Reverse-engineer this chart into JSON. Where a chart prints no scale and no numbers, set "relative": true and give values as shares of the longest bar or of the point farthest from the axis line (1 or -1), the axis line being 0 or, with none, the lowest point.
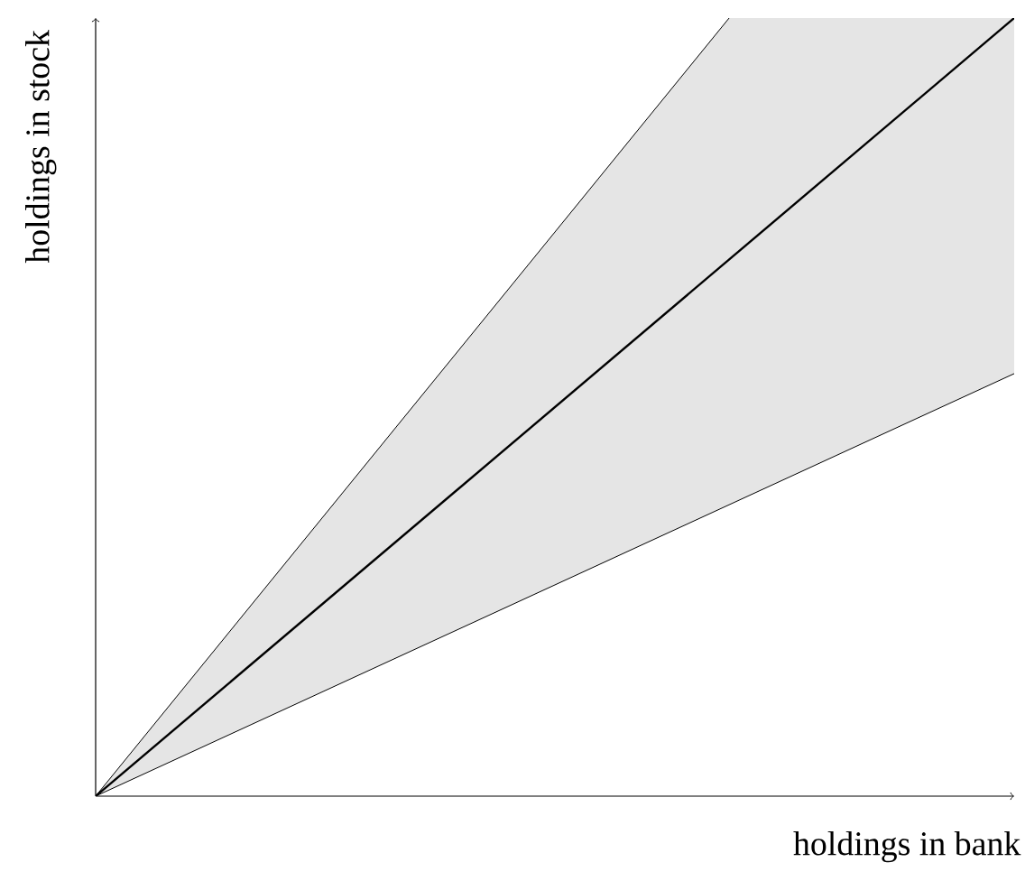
{
  "chart_data": {
    "type": "line",
    "relative": true,
    "xlabel": "holdings in bank",
    "ylabel": "holdings in stock",
    "categories": [
      null,
      null
    ],
    "series": [
      {
        "color": "#000000",
        "values": [
          0,
          1
        ],
        "lower": [
          0,
          0.543
        ],
        "upper": [
          0,
          1.45
        ]
      }
    ]
  }
}
